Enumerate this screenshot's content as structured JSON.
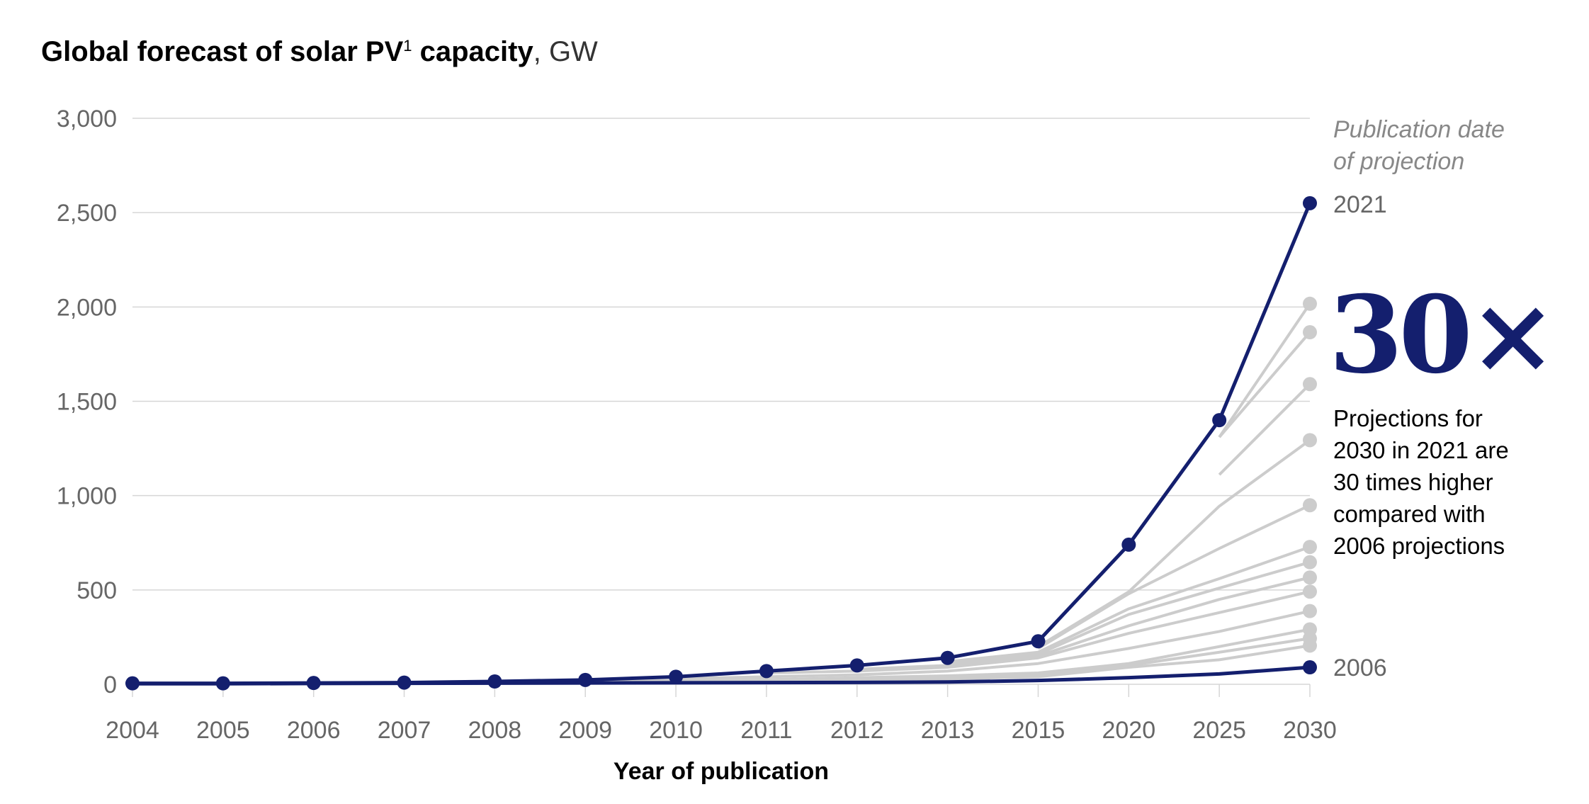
{
  "chart_data": {
    "type": "line",
    "title": "Global forecast of solar PV",
    "title_superscript": "1",
    "title_unit": ", GW",
    "xlabel": "Year of publication",
    "ylabel": "",
    "ylim": [
      0,
      3000
    ],
    "yticks": [
      "0",
      "500",
      "1,000",
      "1,500",
      "2,000",
      "2,500",
      "3,000"
    ],
    "ytick_values": [
      0,
      500,
      1000,
      1500,
      2000,
      2500,
      3000
    ],
    "categories": [
      "2004",
      "2005",
      "2006",
      "2007",
      "2008",
      "2009",
      "2010",
      "2011",
      "2012",
      "2013",
      "2015",
      "2020",
      "2025",
      "2030"
    ],
    "grid": "horizontal",
    "colors": {
      "highlight": "#141f6e",
      "other": "#cccccc",
      "grid": "#d6d6d6"
    },
    "series": [
      {
        "name": "2021",
        "highlight": true,
        "values": [
          5,
          5,
          7,
          9,
          15,
          23,
          40,
          70,
          100,
          140,
          228,
          740,
          1400,
          2550
        ]
      },
      {
        "name": "2006",
        "highlight": true,
        "values": [
          3,
          3,
          4,
          5,
          6,
          7,
          8,
          9,
          10,
          12,
          20,
          35,
          55,
          90
        ]
      },
      {
        "highlight": false,
        "values": [
          null,
          null,
          null,
          null,
          null,
          null,
          null,
          null,
          null,
          null,
          null,
          null,
          1310,
          2017
        ]
      },
      {
        "highlight": false,
        "values": [
          null,
          null,
          null,
          null,
          null,
          null,
          null,
          null,
          null,
          null,
          null,
          null,
          1310,
          1866
        ]
      },
      {
        "highlight": false,
        "values": [
          null,
          null,
          null,
          null,
          null,
          null,
          null,
          null,
          null,
          null,
          null,
          null,
          1111,
          1591
        ]
      },
      {
        "highlight": false,
        "values": [
          null,
          null,
          null,
          null,
          null,
          null,
          null,
          null,
          null,
          null,
          200,
          490,
          944,
          1294
        ]
      },
      {
        "highlight": false,
        "values": [
          null,
          null,
          null,
          null,
          null,
          null,
          null,
          null,
          null,
          null,
          190,
          480,
          720,
          949
        ]
      },
      {
        "highlight": false,
        "values": [
          null,
          null,
          null,
          null,
          null,
          null,
          null,
          null,
          null,
          120,
          170,
          400,
          560,
          728
        ]
      },
      {
        "highlight": false,
        "values": [
          null,
          null,
          null,
          null,
          null,
          null,
          null,
          null,
          null,
          110,
          160,
          370,
          510,
          647
        ]
      },
      {
        "highlight": false,
        "values": [
          null,
          null,
          null,
          null,
          null,
          null,
          null,
          null,
          80,
          100,
          150,
          310,
          450,
          566
        ]
      },
      {
        "highlight": false,
        "values": [
          null,
          null,
          null,
          null,
          null,
          null,
          null,
          60,
          70,
          90,
          140,
          270,
          380,
          491
        ]
      },
      {
        "highlight": false,
        "values": [
          null,
          null,
          null,
          null,
          null,
          null,
          30,
          40,
          50,
          70,
          110,
          190,
          280,
          388
        ]
      },
      {
        "highlight": false,
        "values": [
          null,
          null,
          null,
          null,
          null,
          15,
          20,
          25,
          35,
          45,
          60,
          110,
          200,
          291
        ]
      },
      {
        "highlight": false,
        "values": [
          null,
          null,
          null,
          null,
          10,
          12,
          15,
          20,
          28,
          38,
          50,
          100,
          170,
          243
        ]
      },
      {
        "highlight": false,
        "values": [
          null,
          null,
          null,
          8,
          9,
          10,
          12,
          15,
          20,
          28,
          40,
          90,
          130,
          205
        ]
      }
    ],
    "annotations": {
      "legend_heading": [
        "Publication date",
        "of projection"
      ],
      "top_label": "2021",
      "bottom_label": "2006",
      "callout_big": "30×",
      "callout_text": [
        "Projections for",
        "2030 in 2021 are",
        "30 times higher",
        "compared with",
        "2006 projections"
      ]
    }
  }
}
